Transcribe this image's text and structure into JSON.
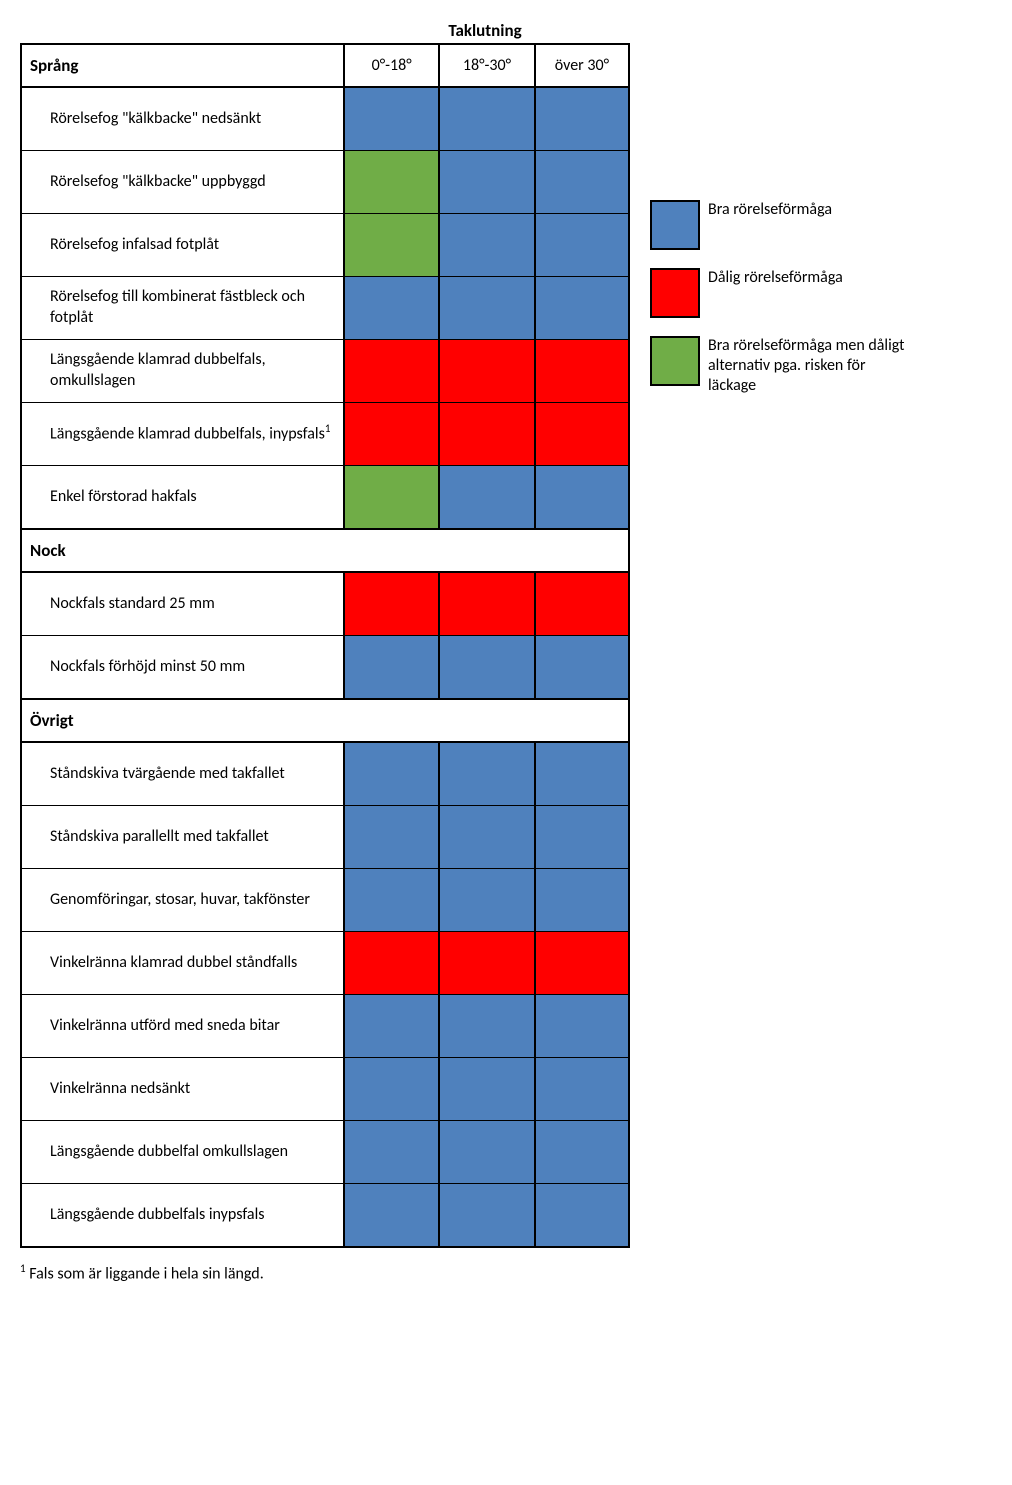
{
  "colors": {
    "blue": "#4f81bd",
    "red": "#ff0000",
    "green": "#70ad47",
    "white": "#ffffff",
    "border": "#000000"
  },
  "title": "Taklutning",
  "columns": [
    "0°-18°",
    "18°-30°",
    "över 30°"
  ],
  "sections": [
    {
      "header": "Språng",
      "rows": [
        {
          "label": "Rörelsefog \"kälkbacke\" nedsänkt",
          "cells": [
            "blue",
            "blue",
            "blue"
          ]
        },
        {
          "label": "Rörelsefog \"kälkbacke\" uppbyggd",
          "cells": [
            "green",
            "blue",
            "blue"
          ]
        },
        {
          "label": "Rörelsefog infalsad fotplåt",
          "cells": [
            "green",
            "blue",
            "blue"
          ]
        },
        {
          "label": "Rörelsefog till kombinerat fästbleck och fotplåt",
          "cells": [
            "blue",
            "blue",
            "blue"
          ]
        },
        {
          "label": "Längsgående klamrad dubbelfals, omkullslagen",
          "cells": [
            "red",
            "red",
            "red"
          ]
        },
        {
          "label": "Längsgående klamrad dubbelfals, inypsfals",
          "sup": "1",
          "cells": [
            "red",
            "red",
            "red"
          ]
        },
        {
          "label": "Enkel förstorad hakfals",
          "cells": [
            "green",
            "blue",
            "blue"
          ]
        }
      ]
    },
    {
      "header": "Nock",
      "rows": [
        {
          "label": "Nockfals standard 25 mm",
          "cells": [
            "red",
            "red",
            "red"
          ]
        },
        {
          "label": "Nockfals förhöjd minst 50 mm",
          "cells": [
            "blue",
            "blue",
            "blue"
          ]
        }
      ]
    },
    {
      "header": "Övrigt",
      "rows": [
        {
          "label": "Ståndskiva tvärgående med takfallet",
          "cells": [
            "blue",
            "blue",
            "blue"
          ]
        },
        {
          "label": "Ståndskiva parallellt med takfallet",
          "cells": [
            "blue",
            "blue",
            "blue"
          ]
        },
        {
          "label": "Genomföringar, stosar, huvar, takfönster",
          "cells": [
            "blue",
            "blue",
            "blue"
          ]
        },
        {
          "label": "Vinkelränna klamrad dubbel ståndfalls",
          "cells": [
            "red",
            "red",
            "red"
          ]
        },
        {
          "label": "Vinkelränna utförd med sneda bitar",
          "cells": [
            "blue",
            "blue",
            "blue"
          ]
        },
        {
          "label": "Vinkelränna nedsänkt",
          "cells": [
            "blue",
            "blue",
            "blue"
          ]
        },
        {
          "label": "Längsgående dubbelfal omkullslagen",
          "cells": [
            "blue",
            "blue",
            "blue"
          ]
        },
        {
          "label": "Längsgående dubbelfals inypsfals",
          "cells": [
            "blue",
            "blue",
            "blue"
          ]
        }
      ]
    }
  ],
  "legend": [
    {
      "color": "blue",
      "label": "Bra rörelseförmåga"
    },
    {
      "color": "red",
      "label": "Dålig rörelseförmåga"
    },
    {
      "color": "green",
      "label": "Bra rörelseförmåga men dåligt alternativ pga. risken för läckage"
    }
  ],
  "footnote_sup": "1",
  "footnote": " Fals som är liggande i hela sin längd."
}
